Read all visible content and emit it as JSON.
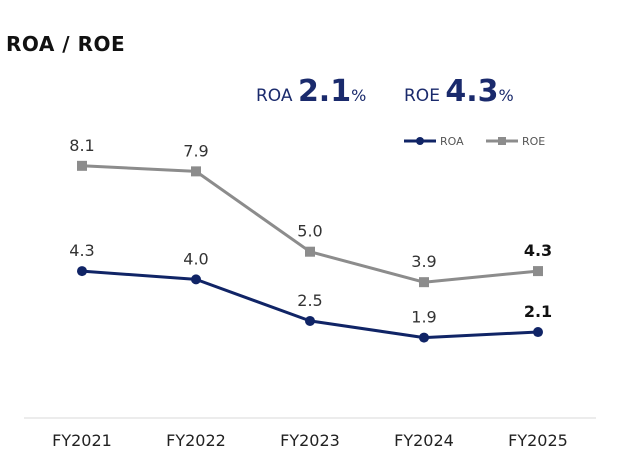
{
  "chart_data": {
    "type": "line",
    "title": "ROA / ROE",
    "categories": [
      "FY2021",
      "FY2022",
      "FY2023",
      "FY2024",
      "FY2025"
    ],
    "series": [
      {
        "name": "ROA",
        "values": [
          4.3,
          4.0,
          2.5,
          1.9,
          2.1
        ],
        "labels": [
          "4.3",
          "4.0",
          "2.5",
          "1.9",
          "2.1"
        ],
        "color": "#102466",
        "marker": "circle"
      },
      {
        "name": "ROE",
        "values": [
          8.1,
          7.9,
          5.0,
          3.9,
          4.3
        ],
        "labels": [
          "8.1",
          "7.9",
          "5.0",
          "3.9",
          "4.3"
        ],
        "color": "#8c8c8c",
        "marker": "square"
      }
    ],
    "highlight_last_label": true,
    "legend_position": "top-right",
    "grid": false
  },
  "headline": {
    "roa": {
      "label": "ROA ",
      "value": "2.1",
      "unit": "%"
    },
    "roe": {
      "label": "ROE ",
      "value": "4.3",
      "unit": "%"
    }
  },
  "colors": {
    "accent": "#1a2a6c",
    "roa": "#102466",
    "roe": "#8c8c8c"
  }
}
